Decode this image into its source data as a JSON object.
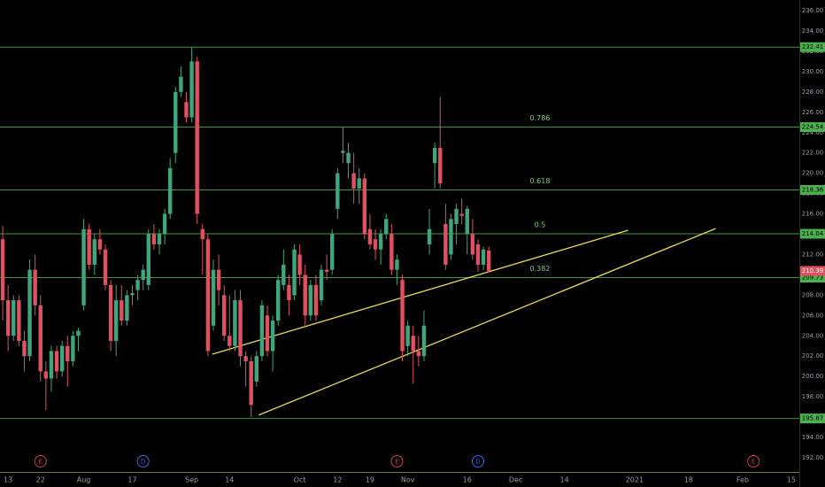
{
  "chart_data": {
    "type": "candlestick",
    "up_color": "#3fa57c",
    "down_color": "#e0505f",
    "level_color": "#4caf50",
    "trend_color": "#e6d95a",
    "event_colors": {
      "E": "#c8453f",
      "D": "#2f6bd8"
    },
    "ylim": [
      190.43,
      237.05
    ],
    "yticks": [
      {
        "value": 236,
        "label": "236.00"
      },
      {
        "value": 234,
        "label": "234.00"
      },
      {
        "value": 232,
        "label": "232.00"
      },
      {
        "value": 230,
        "label": "230.00"
      },
      {
        "value": 228,
        "label": "228.00"
      },
      {
        "value": 226,
        "label": "226.00"
      },
      {
        "value": 224,
        "label": "224.00"
      },
      {
        "value": 222,
        "label": "222.00"
      },
      {
        "value": 220,
        "label": "220.00"
      },
      {
        "value": 218,
        "label": "218.00"
      },
      {
        "value": 216,
        "label": "216.00"
      },
      {
        "value": 214,
        "label": "214.00"
      },
      {
        "value": 212,
        "label": "212.00"
      },
      {
        "value": 210,
        "label": "210.00"
      },
      {
        "value": 208,
        "label": "208.00"
      },
      {
        "value": 206,
        "label": "206.00"
      },
      {
        "value": 204,
        "label": "204.00"
      },
      {
        "value": 202,
        "label": "202.00"
      },
      {
        "value": 200,
        "label": "200.00"
      },
      {
        "value": 198,
        "label": "198.00"
      },
      {
        "value": 196,
        "label": "196.00"
      },
      {
        "value": 194,
        "label": "194.00"
      },
      {
        "value": 192,
        "label": "192.00"
      }
    ],
    "categories": [
      null,
      "13",
      null,
      null,
      null,
      null,
      null,
      "22",
      null,
      null,
      null,
      null,
      null,
      null,
      null,
      "Aug",
      null,
      null,
      null,
      null,
      null,
      null,
      null,
      null,
      "17",
      null,
      null,
      null,
      null,
      null,
      null,
      null,
      null,
      null,
      null,
      "Sep",
      null,
      null,
      null,
      null,
      null,
      null,
      "14",
      null,
      null,
      null,
      null,
      null,
      null,
      null,
      null,
      null,
      null,
      null,
      null,
      "Oct",
      null,
      null,
      null,
      null,
      null,
      null,
      "12",
      null,
      null,
      null,
      null,
      null,
      "19",
      null,
      null,
      null,
      null,
      null,
      null,
      "Nov",
      null,
      null,
      null,
      null,
      null,
      null,
      null,
      null,
      null,
      null,
      "16",
      null,
      null,
      null,
      null,
      null,
      null,
      null,
      null,
      "Dec",
      null,
      null,
      null,
      null,
      null,
      null,
      null,
      null,
      "14",
      null,
      null,
      null,
      null,
      null,
      null,
      null,
      null,
      null,
      null,
      null,
      null,
      "2021",
      null,
      null,
      null,
      null,
      null,
      null,
      null,
      null,
      null,
      "18",
      null,
      null,
      null,
      null,
      null,
      null,
      null,
      null,
      null,
      "Feb",
      null,
      null,
      null,
      null,
      null,
      null,
      null,
      null,
      "15",
      null
    ],
    "open": [
      213.5,
      207.5,
      204,
      207.5,
      203.5,
      202,
      210.5,
      207,
      200.5,
      199.8,
      202.5,
      200.5,
      203,
      201.5,
      204,
      207,
      214.5,
      211,
      213.5,
      212.5,
      209,
      203.5,
      207.5,
      205.5,
      208,
      208.5,
      209.5,
      209,
      214,
      213,
      214,
      216,
      222,
      228,
      227,
      225.5,
      231,
      214.5,
      213.5,
      205,
      210.5,
      208,
      204,
      203,
      207.5,
      202,
      201.5,
      199.5,
      202,
      206,
      202.5,
      205.5,
      209,
      209,
      208,
      212,
      210,
      206,
      209,
      207.5,
      210.5,
      210.5,
      216.5,
      222,
      221,
      220,
      218.5,
      219.5,
      214.5,
      213.5,
      212.5,
      214,
      214,
      210.5,
      209.5,
      203,
      204,
      202.5,
      202,
      213,
      221,
      222.5,
      215,
      212,
      215,
      216,
      214,
      214,
      213,
      211,
      212.4,
      null,
      null,
      null,
      null,
      null,
      null,
      null,
      null,
      null,
      null,
      null,
      null,
      null,
      null,
      null,
      null,
      null,
      null,
      null,
      null,
      null,
      null,
      null,
      null,
      null,
      null,
      null,
      null,
      null,
      null,
      null,
      null,
      null,
      null,
      null,
      null,
      null,
      null,
      null,
      null,
      null,
      null,
      null,
      null,
      null,
      null,
      null,
      null,
      null,
      null,
      null,
      null,
      null,
      null,
      null,
      null,
      null
    ],
    "high": [
      214.8,
      209,
      208,
      208,
      204.5,
      211.5,
      212,
      208,
      201.5,
      203,
      203,
      203.5,
      204,
      204.5,
      204.8,
      215.5,
      215,
      214,
      214.5,
      213,
      209.5,
      209,
      209,
      208.5,
      209,
      210,
      211,
      214.5,
      215,
      214.5,
      216.5,
      221.5,
      228.5,
      230.5,
      228,
      232.4,
      231.5,
      215,
      214,
      211.5,
      212,
      209,
      208,
      208.5,
      208.5,
      202.5,
      202,
      202.5,
      207.5,
      207,
      206,
      210,
      212.5,
      210,
      213,
      213,
      211,
      209.5,
      210,
      211,
      212,
      214.5,
      220.5,
      224.5,
      223,
      222,
      220.5,
      220,
      216,
      214.5,
      214.5,
      216,
      215,
      212,
      210,
      205.5,
      205,
      204,
      206.5,
      216.5,
      223,
      227.5,
      217,
      216,
      217,
      217.5,
      216.8,
      215.5,
      213.5,
      212.8,
      212.8,
      null,
      null,
      null,
      null,
      null,
      null,
      null,
      null,
      null,
      null,
      null,
      null,
      null,
      null,
      null,
      null,
      null,
      null,
      null,
      null,
      null,
      null,
      null,
      null,
      null,
      null,
      null,
      null,
      null,
      null,
      null,
      null,
      null,
      null,
      null,
      null,
      null,
      null,
      null,
      null,
      null,
      null,
      null,
      null,
      null,
      null,
      null,
      null,
      null,
      null,
      null,
      null,
      null,
      null,
      null,
      null,
      null
    ],
    "low": [
      205.5,
      202.5,
      203.5,
      203,
      200.5,
      201.5,
      206,
      199.5,
      196.7,
      198.5,
      199.8,
      200,
      199,
      201,
      202.5,
      206.5,
      210.5,
      210,
      212,
      208.5,
      202.5,
      202,
      205,
      205,
      207,
      207.5,
      208.5,
      208.5,
      212.5,
      212,
      213,
      215.5,
      221,
      227.5,
      225,
      225,
      215,
      210,
      202,
      204.5,
      207,
      203.5,
      202.5,
      202.5,
      201,
      199,
      196,
      199,
      201.5,
      202,
      200.5,
      205,
      208.5,
      206,
      207.5,
      209,
      205,
      205.5,
      205.5,
      207,
      209.5,
      210,
      215.5,
      221,
      219.5,
      217,
      217,
      213.5,
      212.5,
      211.5,
      211,
      213.5,
      210,
      209,
      201.5,
      202,
      199.3,
      201,
      201.5,
      212,
      218.5,
      218.5,
      210.5,
      211.5,
      213,
      215,
      212,
      211.5,
      210.3,
      210.5,
      210.2,
      null,
      null,
      null,
      null,
      null,
      null,
      null,
      null,
      null,
      null,
      null,
      null,
      null,
      null,
      null,
      null,
      null,
      null,
      null,
      null,
      null,
      null,
      null,
      null,
      null,
      null,
      null,
      null,
      null,
      null,
      null,
      null,
      null,
      null,
      null,
      null,
      null,
      null,
      null,
      null,
      null,
      null,
      null,
      null,
      null,
      null,
      null,
      null,
      null,
      null,
      null,
      null,
      null,
      null,
      null,
      null,
      null
    ],
    "close": [
      207.5,
      204,
      207.5,
      203.5,
      202,
      210.5,
      207,
      200.5,
      199.8,
      202.5,
      200.5,
      203,
      201.5,
      204,
      204.5,
      214.5,
      211,
      213.5,
      212.5,
      209,
      203.5,
      207.5,
      205.5,
      208,
      208.2,
      209.5,
      210.5,
      214,
      213,
      214,
      216,
      220.5,
      228,
      229.5,
      225.5,
      231,
      216,
      213.5,
      202.5,
      210.5,
      208.5,
      204,
      203,
      207.5,
      202,
      201.5,
      197.2,
      202,
      207,
      202.5,
      205.5,
      209.5,
      211,
      207.5,
      212.5,
      210,
      206,
      209,
      206,
      210.5,
      210.3,
      214,
      220,
      222.2,
      222,
      218.5,
      219.5,
      214,
      213,
      212.5,
      214,
      215.5,
      210.5,
      211.5,
      202.5,
      205,
      202.5,
      202,
      205,
      214.5,
      222.5,
      219,
      211,
      215.5,
      216.5,
      215.8,
      216.5,
      212,
      211,
      212.5,
      210.39,
      null,
      null,
      null,
      null,
      null,
      null,
      null,
      null,
      null,
      null,
      null,
      null,
      null,
      null,
      null,
      null,
      null,
      null,
      null,
      null,
      null,
      null,
      null,
      null,
      null,
      null,
      null,
      null,
      null,
      null,
      null,
      null,
      null,
      null,
      null,
      null,
      null,
      null,
      null,
      null,
      null,
      null,
      null,
      null,
      null,
      null,
      null,
      null,
      null,
      null,
      null,
      null,
      null,
      null,
      null,
      null,
      null
    ],
    "events": [
      null,
      null,
      null,
      null,
      null,
      null,
      null,
      "E",
      null,
      null,
      null,
      null,
      null,
      null,
      null,
      null,
      null,
      null,
      null,
      null,
      null,
      null,
      null,
      null,
      null,
      null,
      "D",
      null,
      null,
      null,
      null,
      null,
      null,
      null,
      null,
      null,
      null,
      null,
      null,
      null,
      null,
      null,
      null,
      null,
      null,
      null,
      null,
      null,
      null,
      null,
      null,
      null,
      null,
      null,
      null,
      null,
      null,
      null,
      null,
      null,
      null,
      null,
      null,
      null,
      null,
      null,
      null,
      null,
      null,
      null,
      null,
      null,
      null,
      "E",
      null,
      null,
      null,
      null,
      null,
      null,
      null,
      null,
      null,
      null,
      null,
      null,
      null,
      null,
      "D",
      null,
      null,
      null,
      null,
      null,
      null,
      null,
      null,
      null,
      null,
      null,
      null,
      null,
      null,
      null,
      null,
      null,
      null,
      null,
      null,
      null,
      null,
      null,
      null,
      null,
      null,
      null,
      null,
      null,
      null,
      null,
      null,
      null,
      null,
      null,
      null,
      null,
      null,
      null,
      null,
      null,
      null,
      null,
      null,
      null,
      null,
      null,
      null,
      null,
      null,
      "E",
      null,
      null,
      null,
      null,
      null,
      null,
      null,
      null
    ],
    "levels": [
      {
        "value": 232.41
      },
      {
        "value": 224.54,
        "ratio": 0.786
      },
      {
        "value": 218.36,
        "ratio": 0.618
      },
      {
        "value": 214.04,
        "ratio": 0.5
      },
      {
        "value": 209.73,
        "ratio": 0.382
      },
      {
        "value": 195.87
      }
    ],
    "trendlines": [
      {
        "x": [
          38.8,
          115.8
        ],
        "y": [
          202.19,
          214.39
        ]
      },
      {
        "x": [
          47.4,
          132
        ],
        "y": [
          196.2,
          214.56
        ]
      }
    ]
  }
}
